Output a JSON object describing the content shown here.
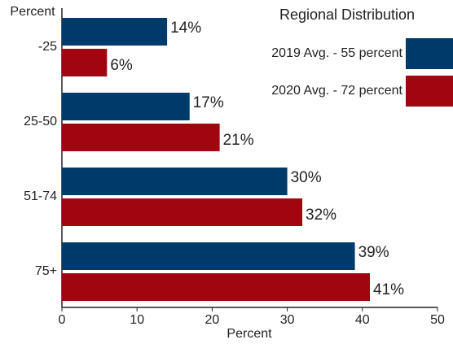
{
  "chart_data": {
    "type": "bar",
    "orientation": "horizontal",
    "y_label": "Percent",
    "x_label": "Percent",
    "legend_title": "Regional Distribution",
    "legend": "upper right",
    "categories": [
      "-25",
      "25-50",
      "51-74",
      "75+"
    ],
    "series": [
      {
        "name": "2019 Avg. - 55 percent",
        "color": "#003a6b",
        "values": [
          14,
          17,
          30,
          39
        ],
        "value_labels": [
          "14%",
          "17%",
          "30%",
          "39%"
        ]
      },
      {
        "name": "2020 Avg. - 72 percent",
        "color": "#a0060f",
        "values": [
          6,
          21,
          32,
          41
        ],
        "value_labels": [
          "6%",
          "21%",
          "32%",
          "41%"
        ]
      }
    ],
    "xlim": [
      0,
      50
    ],
    "xticks": [
      0,
      10,
      20,
      30,
      40,
      50
    ]
  }
}
